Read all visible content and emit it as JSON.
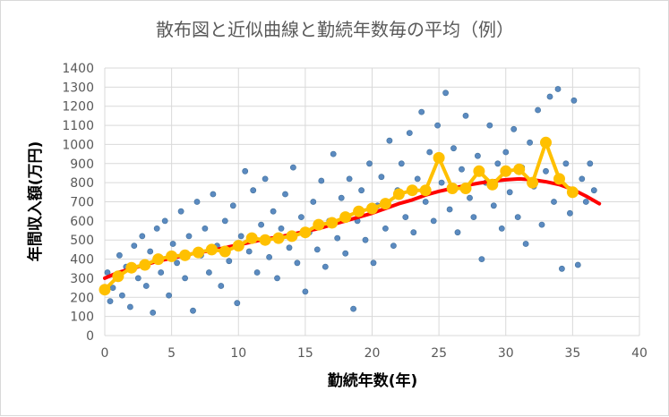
{
  "chart_data": {
    "type": "scatter",
    "title": "散布図と近似曲線と勤続年数毎の平均（例）",
    "xlabel": "勤続年数(年)",
    "ylabel": "年間収入額(万円)",
    "xlim": [
      0,
      40
    ],
    "ylim": [
      0,
      1400
    ],
    "x_ticks": [
      0,
      5,
      10,
      15,
      20,
      25,
      30,
      35,
      40
    ],
    "y_ticks": [
      0,
      100,
      200,
      300,
      400,
      500,
      600,
      700,
      800,
      900,
      1000,
      1100,
      1200,
      1300,
      1400
    ],
    "grid": true,
    "legend": "none",
    "colors": {
      "scatter": "#5b8ac0",
      "scatter_edge": "#41719c",
      "trend": "#ff0000",
      "average": "#ffc000"
    },
    "series": [
      {
        "type": "scatter",
        "points": [
          [
            0.2,
            330
          ],
          [
            0.4,
            180
          ],
          [
            0.6,
            250
          ],
          [
            0.9,
            300
          ],
          [
            1.1,
            420
          ],
          [
            1.3,
            210
          ],
          [
            1.6,
            360
          ],
          [
            1.9,
            150
          ],
          [
            2.2,
            470
          ],
          [
            2.5,
            300
          ],
          [
            2.8,
            520
          ],
          [
            3.1,
            260
          ],
          [
            3.4,
            440
          ],
          [
            3.6,
            120
          ],
          [
            3.9,
            560
          ],
          [
            4.2,
            330
          ],
          [
            4.5,
            600
          ],
          [
            4.8,
            210
          ],
          [
            5.1,
            480
          ],
          [
            5.4,
            380
          ],
          [
            5.7,
            650
          ],
          [
            6.0,
            300
          ],
          [
            6.3,
            520
          ],
          [
            6.6,
            130
          ],
          [
            6.9,
            700
          ],
          [
            7.2,
            420
          ],
          [
            7.5,
            560
          ],
          [
            7.8,
            330
          ],
          [
            8.1,
            740
          ],
          [
            8.4,
            470
          ],
          [
            8.7,
            260
          ],
          [
            9.0,
            600
          ],
          [
            9.3,
            390
          ],
          [
            9.6,
            680
          ],
          [
            9.9,
            170
          ],
          [
            10.2,
            520
          ],
          [
            10.5,
            860
          ],
          [
            10.8,
            440
          ],
          [
            11.1,
            760
          ],
          [
            11.4,
            330
          ],
          [
            11.7,
            580
          ],
          [
            12.0,
            820
          ],
          [
            12.3,
            410
          ],
          [
            12.6,
            650
          ],
          [
            12.9,
            300
          ],
          [
            13.2,
            560
          ],
          [
            13.5,
            740
          ],
          [
            13.8,
            460
          ],
          [
            14.1,
            880
          ],
          [
            14.4,
            380
          ],
          [
            14.7,
            620
          ],
          [
            15.0,
            230
          ],
          [
            15.3,
            540
          ],
          [
            15.6,
            700
          ],
          [
            15.9,
            450
          ],
          [
            16.2,
            810
          ],
          [
            16.5,
            360
          ],
          [
            16.8,
            600
          ],
          [
            17.1,
            950
          ],
          [
            17.4,
            510
          ],
          [
            17.7,
            720
          ],
          [
            18.0,
            430
          ],
          [
            18.3,
            820
          ],
          [
            18.6,
            140
          ],
          [
            18.9,
            600
          ],
          [
            19.2,
            760
          ],
          [
            19.5,
            500
          ],
          [
            19.8,
            900
          ],
          [
            20.1,
            380
          ],
          [
            20.4,
            680
          ],
          [
            20.7,
            830
          ],
          [
            21.0,
            560
          ],
          [
            21.3,
            1020
          ],
          [
            21.6,
            470
          ],
          [
            21.9,
            760
          ],
          [
            22.2,
            900
          ],
          [
            22.5,
            620
          ],
          [
            22.8,
            1060
          ],
          [
            23.1,
            540
          ],
          [
            23.4,
            820
          ],
          [
            23.7,
            1170
          ],
          [
            24.0,
            700
          ],
          [
            24.3,
            960
          ],
          [
            24.6,
            600
          ],
          [
            24.9,
            1100
          ],
          [
            25.2,
            800
          ],
          [
            25.5,
            1270
          ],
          [
            25.8,
            660
          ],
          [
            26.1,
            980
          ],
          [
            26.4,
            540
          ],
          [
            26.7,
            870
          ],
          [
            27.0,
            1150
          ],
          [
            27.3,
            720
          ],
          [
            27.6,
            620
          ],
          [
            27.9,
            940
          ],
          [
            28.2,
            400
          ],
          [
            28.5,
            800
          ],
          [
            28.8,
            1100
          ],
          [
            29.1,
            680
          ],
          [
            29.4,
            900
          ],
          [
            29.7,
            560
          ],
          [
            30.0,
            960
          ],
          [
            30.3,
            750
          ],
          [
            30.6,
            1080
          ],
          [
            30.9,
            620
          ],
          [
            31.2,
            880
          ],
          [
            31.5,
            480
          ],
          [
            31.8,
            1010
          ],
          [
            32.1,
            780
          ],
          [
            32.4,
            1180
          ],
          [
            32.7,
            580
          ],
          [
            33.0,
            860
          ],
          [
            33.3,
            1250
          ],
          [
            33.6,
            700
          ],
          [
            33.9,
            1290
          ],
          [
            34.2,
            350
          ],
          [
            34.5,
            900
          ],
          [
            34.8,
            640
          ],
          [
            35.1,
            1230
          ],
          [
            35.4,
            370
          ],
          [
            35.7,
            820
          ],
          [
            36.0,
            700
          ],
          [
            36.3,
            900
          ],
          [
            36.6,
            760
          ]
        ]
      },
      {
        "type": "line",
        "x": [
          0,
          1,
          2,
          3,
          4,
          5,
          6,
          7,
          8,
          9,
          10,
          11,
          12,
          13,
          14,
          15,
          16,
          17,
          18,
          19,
          20,
          21,
          22,
          23,
          24,
          25,
          26,
          27,
          28,
          29,
          30,
          31,
          32,
          33,
          34,
          35,
          36,
          37
        ],
        "values": [
          300,
          330,
          350,
          370,
          390,
          405,
          420,
          435,
          445,
          460,
          475,
          490,
          505,
          515,
          530,
          545,
          560,
          580,
          600,
          620,
          640,
          665,
          690,
          710,
          735,
          755,
          770,
          785,
          798,
          808,
          815,
          820,
          815,
          805,
          790,
          765,
          730,
          690
        ]
      },
      {
        "type": "line",
        "x": [
          0,
          1,
          2,
          3,
          4,
          5,
          6,
          7,
          8,
          9,
          10,
          11,
          12,
          13,
          14,
          15,
          16,
          17,
          18,
          19,
          20,
          21,
          22,
          23,
          24,
          25,
          26,
          27,
          28,
          29,
          30,
          31,
          32,
          33,
          34,
          35
        ],
        "values": [
          240,
          310,
          355,
          370,
          400,
          415,
          420,
          435,
          450,
          440,
          470,
          510,
          500,
          510,
          520,
          540,
          580,
          590,
          620,
          650,
          665,
          690,
          740,
          760,
          760,
          930,
          770,
          770,
          860,
          790,
          860,
          870,
          800,
          1010,
          820,
          750
        ]
      }
    ]
  }
}
